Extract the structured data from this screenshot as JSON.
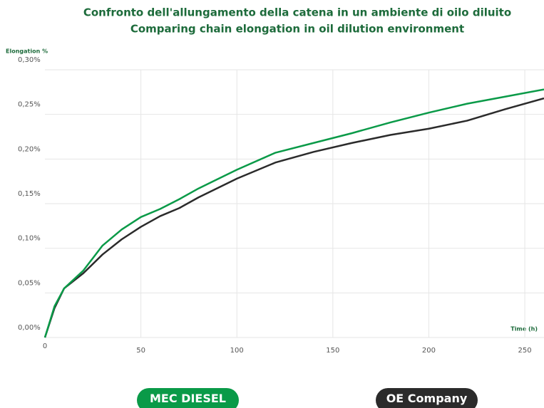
{
  "chart_data": {
    "type": "line",
    "title": "Confronto dell'allungamento della catena in un ambiente di oilo diluito",
    "subtitle": "Comparing chain elongation in oil dilution environment",
    "y_label": "Elongation %",
    "x_label": "Time (h)",
    "x": [
      0,
      5,
      10,
      20,
      30,
      40,
      50,
      60,
      70,
      80,
      100,
      120,
      140,
      160,
      180,
      200,
      220,
      240,
      260
    ],
    "series": [
      {
        "name": "MEC DIESEL",
        "color": "#0a9a48",
        "values": [
          0,
          0.035,
          0.055,
          0.075,
          0.103,
          0.121,
          0.135,
          0.144,
          0.155,
          0.167,
          0.188,
          0.207,
          0.218,
          0.229,
          0.241,
          0.252,
          0.262,
          0.27,
          0.278
        ]
      },
      {
        "name": "OE Company",
        "color": "#2b2b2b",
        "values": [
          0,
          0.033,
          0.055,
          0.072,
          0.093,
          0.11,
          0.124,
          0.136,
          0.145,
          0.157,
          0.178,
          0.196,
          0.208,
          0.218,
          0.227,
          0.234,
          0.243,
          0.256,
          0.268
        ]
      }
    ],
    "xlim": [
      0,
      260
    ],
    "xticks": [
      0,
      50,
      100,
      150,
      200,
      250
    ],
    "ylim": [
      0,
      0.3
    ],
    "yticks": [
      {
        "value": 0,
        "label": "0,00%"
      },
      {
        "value": 0.05,
        "label": "0,05%"
      },
      {
        "value": 0.1,
        "label": "0,10%"
      },
      {
        "value": 0.15,
        "label": "0,15%"
      },
      {
        "value": 0.2,
        "label": "0,20%"
      },
      {
        "value": 0.25,
        "label": "0,25%"
      },
      {
        "value": 0.3,
        "label": "0,30%"
      }
    ],
    "grid": true
  }
}
